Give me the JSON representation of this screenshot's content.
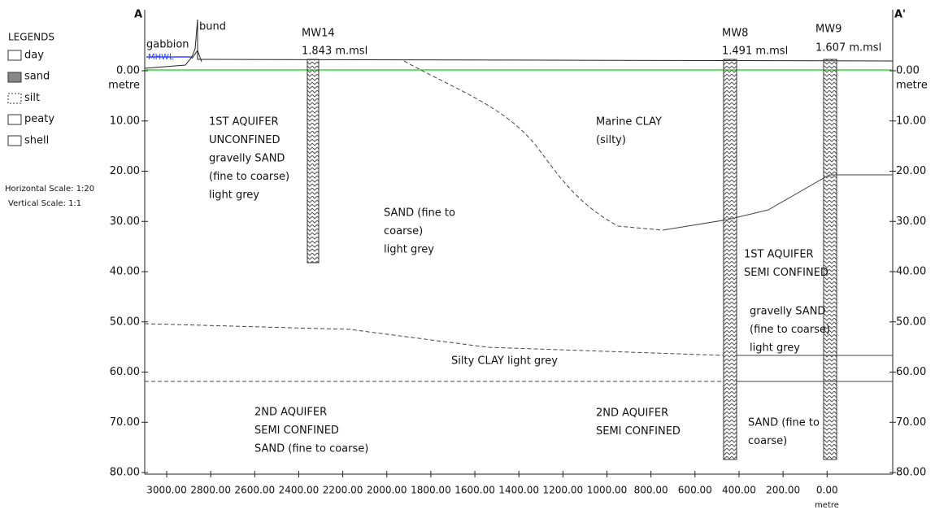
{
  "section": {
    "left_end": "A",
    "right_end": "A'"
  },
  "legend": {
    "title": "LEGENDS",
    "items": [
      "day",
      "sand",
      "silt",
      "peaty",
      "shell"
    ],
    "horizontal_scale": "Horizontal Scale: 1:20",
    "vertical_scale": "Vertical Scale: 1:1"
  },
  "y_axis": {
    "ticks": [
      "0.00",
      "10.00",
      "20.00",
      "30.00",
      "40.00",
      "50.00",
      "60.00",
      "70.00",
      "80.00"
    ],
    "unit": "metre"
  },
  "x_axis": {
    "ticks": [
      "3000.00",
      "2800.00",
      "2600.00",
      "2400.00",
      "2200.00",
      "2000.00",
      "1800.00",
      "1600.00",
      "1400.00",
      "1200.00",
      "1000.00",
      "800.00",
      "600.00",
      "400.00",
      "200.00",
      "0.00"
    ],
    "unit": "metre"
  },
  "wells": [
    {
      "name": "MW14",
      "elevation": "1.843 m.msl"
    },
    {
      "name": "MW8",
      "elevation": "1.491 m.msl"
    },
    {
      "name": "MW9",
      "elevation": "1.607 m.msl"
    }
  ],
  "features": {
    "gabbion": "gabbion",
    "bund": "bund",
    "mhwl": "MHWL"
  },
  "annotations": [
    {
      "lines": [
        "1ST AQUIFER",
        "UNCONFINED",
        "gravelly SAND",
        "(fine to coarse)",
        "light grey"
      ]
    },
    {
      "lines": [
        "Marine CLAY",
        "(silty)"
      ]
    },
    {
      "lines": [
        "SAND (fine to",
        "coarse)",
        "light grey"
      ]
    },
    {
      "lines": [
        "1ST AQUIFER",
        "SEMI CONFINED"
      ]
    },
    {
      "lines": [
        "gravelly SAND",
        "(fine to coarse)",
        "light grey"
      ]
    },
    {
      "lines": [
        "Silty CLAY light grey"
      ]
    },
    {
      "lines": [
        "2ND AQUIFER",
        "SEMI CONFINED",
        "SAND (fine to coarse)"
      ]
    },
    {
      "lines": [
        "2ND AQUIFER",
        "SEMI CONFINED"
      ]
    },
    {
      "lines": [
        "SAND (fine to",
        "coarse)"
      ]
    }
  ]
}
